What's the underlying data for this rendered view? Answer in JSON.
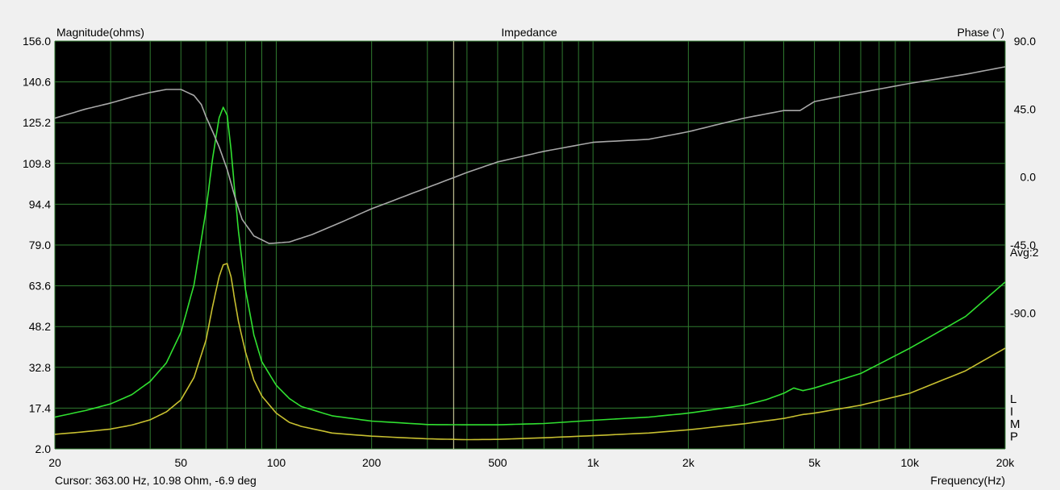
{
  "chart_data": {
    "type": "line",
    "title": "Impedance",
    "ylabel": "Magnitude(ohms)",
    "y2label": "Phase (°)",
    "xlabel": "Frequency(Hz)",
    "x_scale": "log",
    "xlim": [
      20,
      20000
    ],
    "ylim": [
      2.0,
      156.0
    ],
    "y2lim": [
      -180,
      90
    ],
    "x_ticks": [
      20,
      50,
      100,
      200,
      500,
      1000,
      2000,
      5000,
      10000,
      20000
    ],
    "x_tick_labels": [
      "20",
      "50",
      "100",
      "200",
      "500",
      "1k",
      "2k",
      "5k",
      "10k",
      "20k"
    ],
    "y_ticks": [
      156.0,
      140.6,
      125.2,
      109.8,
      94.4,
      79.0,
      63.6,
      48.2,
      32.8,
      17.4,
      2.0
    ],
    "y_tick_labels": [
      "156.0",
      "140.6",
      "125.2",
      "109.8",
      "94.4",
      "79.0",
      "63.6",
      "48.2",
      "32.8",
      "17.4",
      "2.0"
    ],
    "y2_ticks": [
      90,
      45,
      0,
      -45,
      -90
    ],
    "y2_tick_labels": [
      "90.0",
      "45.0",
      "0.0",
      "-45.0",
      "-90.0"
    ],
    "avg_label": "Avg:2",
    "legend_letters": [
      "L",
      "I",
      "M",
      "P"
    ],
    "cursor_freq": 363,
    "cursor_text": "Cursor: 363.00 Hz, 10.98 Ohm, -6.9 deg",
    "grid": true,
    "series": [
      {
        "axis": "magnitude",
        "color": "#30e030",
        "x": [
          20,
          25,
          30,
          35,
          40,
          45,
          50,
          55,
          60,
          63,
          66,
          68,
          70,
          72,
          74,
          76,
          80,
          85,
          90,
          100,
          110,
          120,
          150,
          200,
          300,
          400,
          500,
          700,
          1000,
          1500,
          2000,
          3000,
          3500,
          4000,
          4300,
          4600,
          5000,
          7000,
          10000,
          15000,
          20000
        ],
        "y": [
          14.0,
          16.5,
          19.0,
          22.5,
          27.5,
          34.5,
          46,
          64,
          92,
          112,
          127,
          131,
          128,
          115,
          99,
          84,
          62,
          45,
          35,
          26,
          21,
          18,
          14.5,
          12.5,
          11.2,
          11.1,
          11.1,
          11.6,
          12.8,
          14.0,
          15.5,
          18.5,
          20.5,
          23.0,
          25.0,
          24.0,
          25.0,
          30.5,
          40.0,
          52.0,
          65.0
        ]
      },
      {
        "axis": "magnitude",
        "color": "#c8c030",
        "x": [
          20,
          25,
          30,
          35,
          40,
          45,
          50,
          55,
          60,
          63,
          66,
          68,
          70,
          72,
          74,
          76,
          80,
          85,
          90,
          100,
          110,
          120,
          150,
          200,
          300,
          400,
          500,
          700,
          1000,
          1500,
          2000,
          3000,
          4000,
          4600,
          5000,
          7000,
          10000,
          15000,
          20000
        ],
        "y": [
          7.5,
          8.5,
          9.5,
          11.0,
          13.0,
          16.0,
          20.5,
          29.0,
          43.0,
          56.0,
          67.0,
          71.5,
          72.0,
          67.0,
          58.0,
          50.0,
          38.5,
          28.0,
          22.0,
          15.5,
          12.0,
          10.5,
          8.0,
          6.8,
          5.8,
          5.5,
          5.6,
          6.2,
          7.0,
          8.0,
          9.2,
          11.5,
          13.5,
          15.0,
          15.5,
          18.5,
          23.0,
          31.5,
          40.0
        ]
      },
      {
        "axis": "phase",
        "color": "#a8a8a8",
        "x": [
          20,
          25,
          30,
          35,
          40,
          45,
          50,
          55,
          58,
          60,
          63,
          66,
          70,
          74,
          78,
          85,
          95,
          110,
          130,
          160,
          200,
          300,
          400,
          500,
          700,
          1000,
          1500,
          2000,
          2500,
          3000,
          4000,
          4500,
          5000,
          7000,
          10000,
          15000,
          20000
        ],
        "y": [
          39,
          45,
          49,
          53,
          56,
          58,
          58,
          54,
          48,
          40,
          30,
          20,
          5,
          -13,
          -28,
          -39,
          -44,
          -43,
          -38,
          -30,
          -21,
          -7,
          3,
          10,
          17,
          23,
          25,
          30,
          35,
          39,
          44,
          44,
          50,
          56,
          62,
          68,
          73
        ]
      }
    ]
  }
}
